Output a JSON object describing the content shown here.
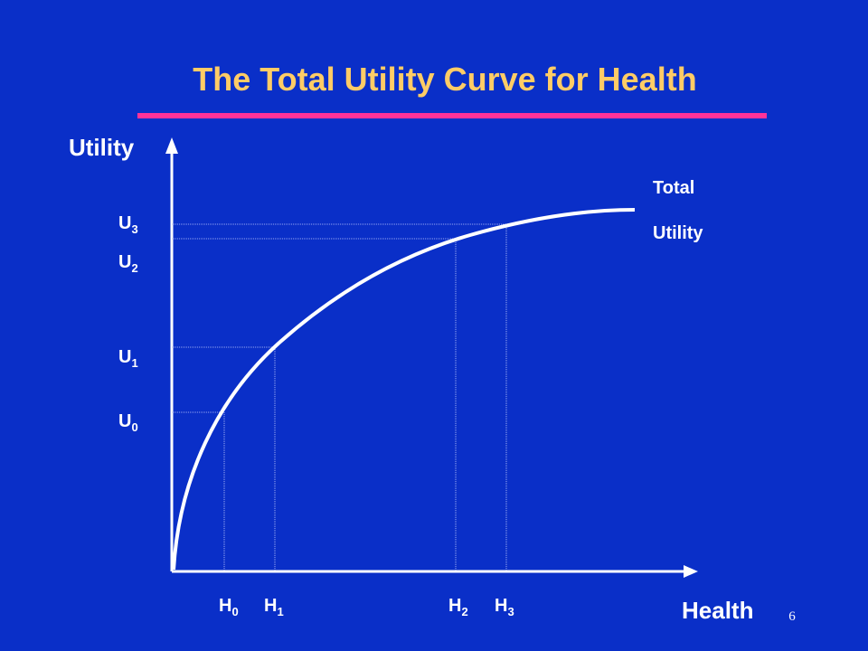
{
  "header": {
    "title": "The Total Utility Curve for Health"
  },
  "axes": {
    "y_label": "Utility",
    "x_label": "Health"
  },
  "curve_label": {
    "line1": "Total",
    "line2": "Utility"
  },
  "utility_levels": [
    {
      "letter": "U",
      "sub": "0"
    },
    {
      "letter": "U",
      "sub": "1"
    },
    {
      "letter": "U",
      "sub": "2"
    },
    {
      "letter": "U",
      "sub": "3"
    }
  ],
  "health_levels": [
    {
      "letter": "H",
      "sub": "0"
    },
    {
      "letter": "H",
      "sub": "1"
    },
    {
      "letter": "H",
      "sub": "2"
    },
    {
      "letter": "H",
      "sub": "3"
    }
  ],
  "page_number": "6"
}
